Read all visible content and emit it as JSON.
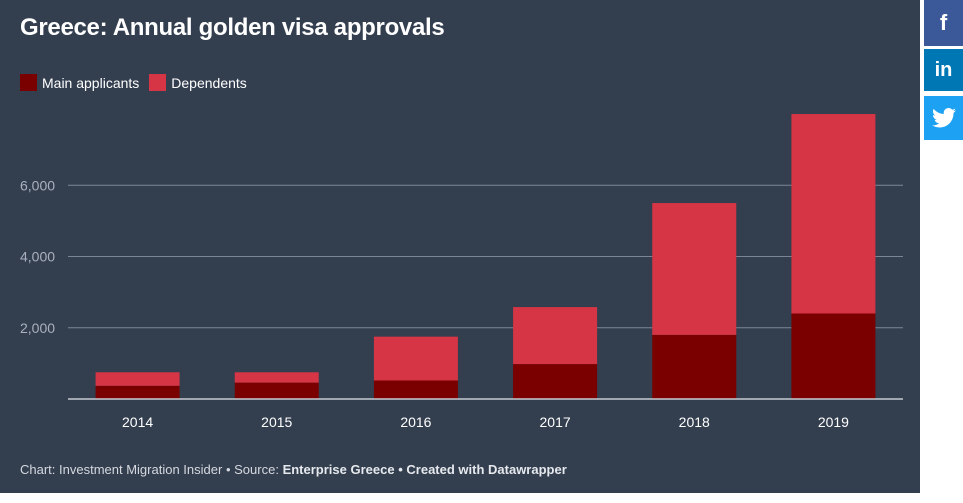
{
  "chart_data": {
    "type": "bar",
    "stacked": true,
    "title": "Greece: Annual golden visa approvals",
    "categories": [
      "2014",
      "2015",
      "2016",
      "2017",
      "2018",
      "2019"
    ],
    "series": [
      {
        "name": "Main applicants",
        "color": "#7a0000",
        "values": [
          370,
          460,
          520,
          980,
          1800,
          2400
        ]
      },
      {
        "name": "Dependents",
        "color": "#d63545",
        "values": [
          380,
          290,
          1230,
          1600,
          3700,
          5600
        ]
      }
    ],
    "yticks": [
      2000,
      4000,
      6000
    ],
    "ytick_labels": [
      "2,000",
      "4,000",
      "6,000"
    ],
    "ylim": [
      0,
      8000
    ],
    "grid": true,
    "legend_position": "top-left"
  },
  "footer": {
    "chart_label": "Chart: Investment Migration Insider",
    "source_label": "Source:",
    "source_name": "Enterprise Greece",
    "credit": "Created with Datawrapper",
    "separator": "•"
  },
  "social": {
    "facebook": "f",
    "linkedin": "in",
    "twitter_icon": "twitter-icon"
  }
}
